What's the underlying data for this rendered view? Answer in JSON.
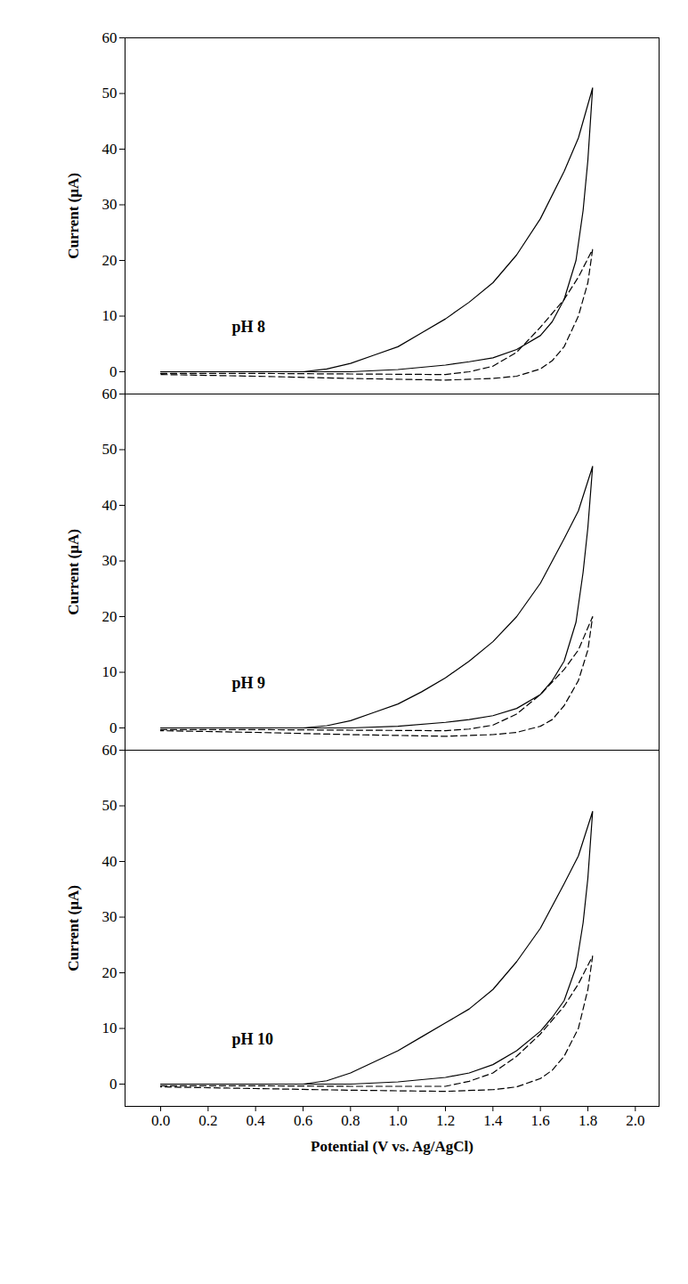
{
  "chart_data": [
    {
      "type": "line",
      "ylabel": "Current (μA)",
      "tick_labels": "y",
      "xlim": [
        -0.15,
        2.1
      ],
      "ylim": [
        -4,
        60
      ],
      "yticks": [
        0,
        10,
        20,
        30,
        40,
        50,
        60
      ],
      "annotations": [
        {
          "text": "pH 8",
          "x": 0.3,
          "y": 8
        }
      ],
      "series": [
        {
          "color": "#000000",
          "line_style": "solid",
          "x": [
            0,
            0.2,
            0.4,
            0.6,
            0.7,
            0.8,
            0.9,
            1.0,
            1.1,
            1.2,
            1.3,
            1.4,
            1.5,
            1.6,
            1.7,
            1.76,
            1.82,
            1.8,
            1.78,
            1.75,
            1.7,
            1.65,
            1.6,
            1.5,
            1.4,
            1.3,
            1.2,
            1.0,
            0.8,
            0.6,
            0.0
          ],
          "values": [
            0,
            0,
            0,
            0,
            0.5,
            1.5,
            3,
            4.5,
            7,
            9.5,
            12.5,
            16,
            21,
            27.5,
            36,
            42,
            51,
            38,
            29,
            20,
            13,
            9,
            6.5,
            4,
            2.5,
            1.8,
            1.2,
            0.4,
            0,
            0,
            0
          ]
        },
        {
          "color": "#000000",
          "line_style": "dashed",
          "x": [
            0,
            0.4,
            0.8,
            1.2,
            1.3,
            1.4,
            1.5,
            1.6,
            1.7,
            1.76,
            1.82,
            1.8,
            1.76,
            1.7,
            1.65,
            1.6,
            1.5,
            1.4,
            1.2,
            0.8,
            0.4,
            0
          ],
          "values": [
            -0.3,
            -0.3,
            -0.4,
            -0.5,
            0,
            1,
            3.5,
            8,
            13,
            17,
            22,
            16,
            10,
            4.5,
            2,
            0.5,
            -0.8,
            -1.2,
            -1.5,
            -1.2,
            -0.8,
            -0.5
          ]
        }
      ]
    },
    {
      "type": "line",
      "ylabel": "Current (μA)",
      "tick_labels": "y",
      "xlim": [
        -0.15,
        2.1
      ],
      "ylim": [
        -4,
        60
      ],
      "yticks": [
        0,
        10,
        20,
        30,
        40,
        50,
        60
      ],
      "annotations": [
        {
          "text": "pH 9",
          "x": 0.3,
          "y": 8
        }
      ],
      "series": [
        {
          "color": "#000000",
          "line_style": "solid",
          "x": [
            0,
            0.2,
            0.4,
            0.6,
            0.7,
            0.8,
            0.9,
            1.0,
            1.1,
            1.2,
            1.3,
            1.4,
            1.5,
            1.6,
            1.7,
            1.76,
            1.82,
            1.8,
            1.78,
            1.75,
            1.7,
            1.65,
            1.6,
            1.5,
            1.4,
            1.3,
            1.2,
            1.0,
            0.8,
            0.6,
            0.0
          ],
          "values": [
            0,
            0,
            0,
            0,
            0.4,
            1.3,
            2.8,
            4.3,
            6.5,
            9,
            12,
            15.5,
            20,
            26,
            34,
            39,
            47,
            36,
            28,
            19,
            12,
            8.5,
            6,
            3.5,
            2.2,
            1.5,
            1,
            0.3,
            0,
            0,
            0
          ]
        },
        {
          "color": "#000000",
          "line_style": "dashed",
          "x": [
            0,
            0.4,
            0.8,
            1.2,
            1.3,
            1.4,
            1.5,
            1.6,
            1.7,
            1.76,
            1.82,
            1.8,
            1.76,
            1.7,
            1.65,
            1.6,
            1.5,
            1.4,
            1.2,
            0.8,
            0.4,
            0
          ],
          "values": [
            -0.3,
            -0.3,
            -0.4,
            -0.5,
            -0.2,
            0.5,
            2.5,
            6,
            10.5,
            14,
            20,
            14,
            8.5,
            4,
            1.5,
            0.3,
            -0.8,
            -1.2,
            -1.5,
            -1.2,
            -0.8,
            -0.5
          ]
        }
      ]
    },
    {
      "type": "line",
      "ylabel": "Current (μA)",
      "xlabel": "Potential (V vs. Ag/AgCl)",
      "xlim": [
        -0.15,
        2.1
      ],
      "ylim": [
        -4,
        60
      ],
      "yticks": [
        0,
        10,
        20,
        30,
        40,
        50,
        60
      ],
      "xticks": [
        {
          "value": 0,
          "label": "0.0"
        },
        {
          "value": 0.2,
          "label": "0.2"
        },
        {
          "value": 0.4,
          "label": "0.4"
        },
        {
          "value": 0.6,
          "label": "0.6"
        },
        {
          "value": 0.8,
          "label": "0.8"
        },
        {
          "value": 1,
          "label": "1.0"
        },
        {
          "value": 1.2,
          "label": "1.2"
        },
        {
          "value": 1.4,
          "label": "1.4"
        },
        {
          "value": 1.6,
          "label": "1.6"
        },
        {
          "value": 1.8,
          "label": "1.8"
        },
        {
          "value": 2,
          "label": "2.0"
        }
      ],
      "annotations": [
        {
          "text": "pH 10",
          "x": 0.3,
          "y": 8
        }
      ],
      "series": [
        {
          "color": "#000000",
          "line_style": "solid",
          "x": [
            0,
            0.2,
            0.4,
            0.6,
            0.7,
            0.8,
            0.9,
            1.0,
            1.1,
            1.2,
            1.3,
            1.4,
            1.5,
            1.6,
            1.7,
            1.76,
            1.82,
            1.8,
            1.78,
            1.75,
            1.7,
            1.65,
            1.6,
            1.5,
            1.4,
            1.3,
            1.2,
            1.0,
            0.8,
            0.6,
            0.0
          ],
          "values": [
            0,
            0,
            0,
            0,
            0.6,
            2,
            4,
            6,
            8.5,
            11,
            13.5,
            17,
            22,
            28,
            36,
            41,
            49,
            37,
            29,
            21,
            15,
            12,
            9.5,
            6,
            3.5,
            2,
            1.2,
            0.4,
            0,
            0,
            0
          ]
        },
        {
          "color": "#000000",
          "line_style": "dashed",
          "x": [
            0,
            0.4,
            0.8,
            1.2,
            1.3,
            1.4,
            1.5,
            1.6,
            1.7,
            1.76,
            1.82,
            1.8,
            1.76,
            1.7,
            1.65,
            1.6,
            1.5,
            1.4,
            1.2,
            0.8,
            0.4,
            0
          ],
          "values": [
            -0.3,
            -0.3,
            -0.4,
            -0.4,
            0.5,
            2,
            5,
            9,
            14,
            18,
            23,
            17,
            10,
            5,
            2.5,
            1,
            -0.5,
            -1,
            -1.3,
            -1.1,
            -0.8,
            -0.5
          ]
        }
      ]
    }
  ]
}
